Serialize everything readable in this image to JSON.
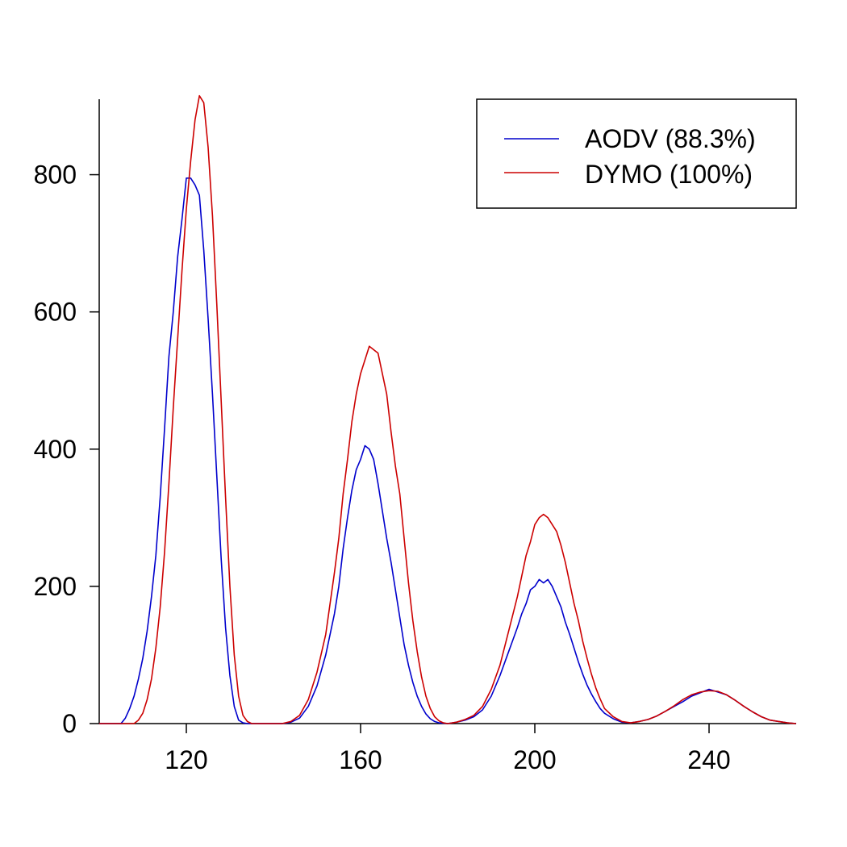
{
  "chart_data": {
    "type": "line",
    "title": "",
    "xlabel": "",
    "ylabel": "",
    "xlim": [
      100,
      260
    ],
    "ylim": [
      0,
      910
    ],
    "x_ticks": [
      120,
      160,
      200,
      240
    ],
    "y_ticks": [
      0,
      200,
      400,
      600,
      800
    ],
    "x_tick_labels": [
      "120",
      "160",
      "200",
      "240"
    ],
    "y_tick_labels": [
      "0",
      "200",
      "400",
      "600",
      "800"
    ],
    "grid": false,
    "legend_position": "top-right",
    "colors": {
      "AODV": "#0000cc",
      "DYMO": "#cc0000"
    },
    "series": [
      {
        "name": "AODV (88.3%)",
        "color": "#0000cc",
        "x": [
          100,
          105,
          106,
          107,
          108,
          109,
          110,
          111,
          112,
          113,
          114,
          115,
          116,
          117,
          118,
          119,
          120,
          121,
          122,
          123,
          124,
          125,
          126,
          127,
          128,
          129,
          130,
          131,
          132,
          133,
          134,
          135,
          136,
          140,
          142,
          144,
          146,
          148,
          150,
          152,
          154,
          155,
          156,
          157,
          158,
          159,
          160,
          161,
          162,
          163,
          164,
          165,
          166,
          167,
          168,
          169,
          170,
          171,
          172,
          173,
          174,
          175,
          176,
          177,
          178,
          180,
          182,
          184,
          186,
          188,
          190,
          192,
          194,
          196,
          197,
          198,
          199,
          200,
          201,
          202,
          203,
          204,
          205,
          206,
          207,
          208,
          209,
          210,
          211,
          212,
          213,
          214,
          215,
          216,
          218,
          220,
          222,
          224,
          226,
          228,
          230,
          232,
          234,
          236,
          238,
          240,
          242,
          244,
          246,
          248,
          250,
          252,
          254,
          256,
          258,
          260
        ],
        "y": [
          0,
          0,
          8,
          22,
          40,
          65,
          95,
          135,
          185,
          245,
          330,
          430,
          535,
          600,
          680,
          735,
          795,
          795,
          785,
          770,
          690,
          590,
          480,
          360,
          240,
          140,
          70,
          25,
          5,
          1,
          0,
          0,
          0,
          0,
          0,
          2,
          8,
          25,
          55,
          100,
          160,
          200,
          255,
          300,
          340,
          370,
          385,
          405,
          400,
          385,
          350,
          310,
          270,
          235,
          195,
          155,
          115,
          85,
          60,
          40,
          25,
          14,
          7,
          3,
          1,
          0,
          2,
          5,
          10,
          20,
          40,
          70,
          105,
          140,
          160,
          175,
          195,
          200,
          210,
          205,
          210,
          200,
          185,
          170,
          148,
          130,
          110,
          90,
          72,
          56,
          43,
          32,
          22,
          15,
          7,
          2,
          1,
          3,
          6,
          11,
          18,
          25,
          32,
          40,
          45,
          50,
          46,
          42,
          34,
          25,
          17,
          10,
          5,
          3,
          1,
          0
        ]
      },
      {
        "name": "DYMO (100%)",
        "color": "#cc0000",
        "x": [
          100,
          108,
          109,
          110,
          111,
          112,
          113,
          114,
          115,
          116,
          117,
          118,
          119,
          120,
          121,
          122,
          123,
          124,
          125,
          126,
          127,
          128,
          129,
          130,
          131,
          132,
          133,
          134,
          135,
          136,
          137,
          140,
          142,
          144,
          146,
          148,
          150,
          152,
          154,
          155,
          156,
          157,
          158,
          159,
          160,
          161,
          162,
          163,
          164,
          165,
          166,
          167,
          168,
          169,
          170,
          171,
          172,
          173,
          174,
          175,
          176,
          177,
          178,
          179,
          180,
          182,
          184,
          186,
          188,
          190,
          192,
          194,
          196,
          197,
          198,
          199,
          200,
          201,
          202,
          203,
          204,
          205,
          206,
          207,
          208,
          209,
          210,
          211,
          212,
          213,
          214,
          215,
          216,
          218,
          220,
          222,
          224,
          226,
          228,
          230,
          232,
          234,
          236,
          238,
          240,
          242,
          244,
          246,
          248,
          250,
          252,
          254,
          256,
          258,
          260
        ],
        "y": [
          0,
          0,
          5,
          15,
          35,
          65,
          110,
          170,
          250,
          350,
          460,
          560,
          660,
          750,
          820,
          880,
          915,
          905,
          840,
          740,
          610,
          470,
          330,
          200,
          100,
          40,
          12,
          3,
          0,
          0,
          0,
          0,
          0,
          3,
          12,
          35,
          75,
          130,
          220,
          270,
          335,
          385,
          440,
          480,
          510,
          530,
          550,
          545,
          540,
          510,
          480,
          425,
          375,
          335,
          270,
          205,
          150,
          105,
          68,
          40,
          22,
          10,
          4,
          1,
          0,
          2,
          6,
          12,
          25,
          50,
          85,
          135,
          185,
          215,
          245,
          265,
          290,
          300,
          305,
          300,
          290,
          280,
          260,
          235,
          205,
          175,
          150,
          120,
          95,
          72,
          52,
          36,
          22,
          10,
          3,
          1,
          3,
          6,
          11,
          18,
          26,
          35,
          42,
          46,
          48,
          47,
          42,
          34,
          25,
          17,
          10,
          5,
          3,
          1,
          0
        ]
      }
    ]
  }
}
